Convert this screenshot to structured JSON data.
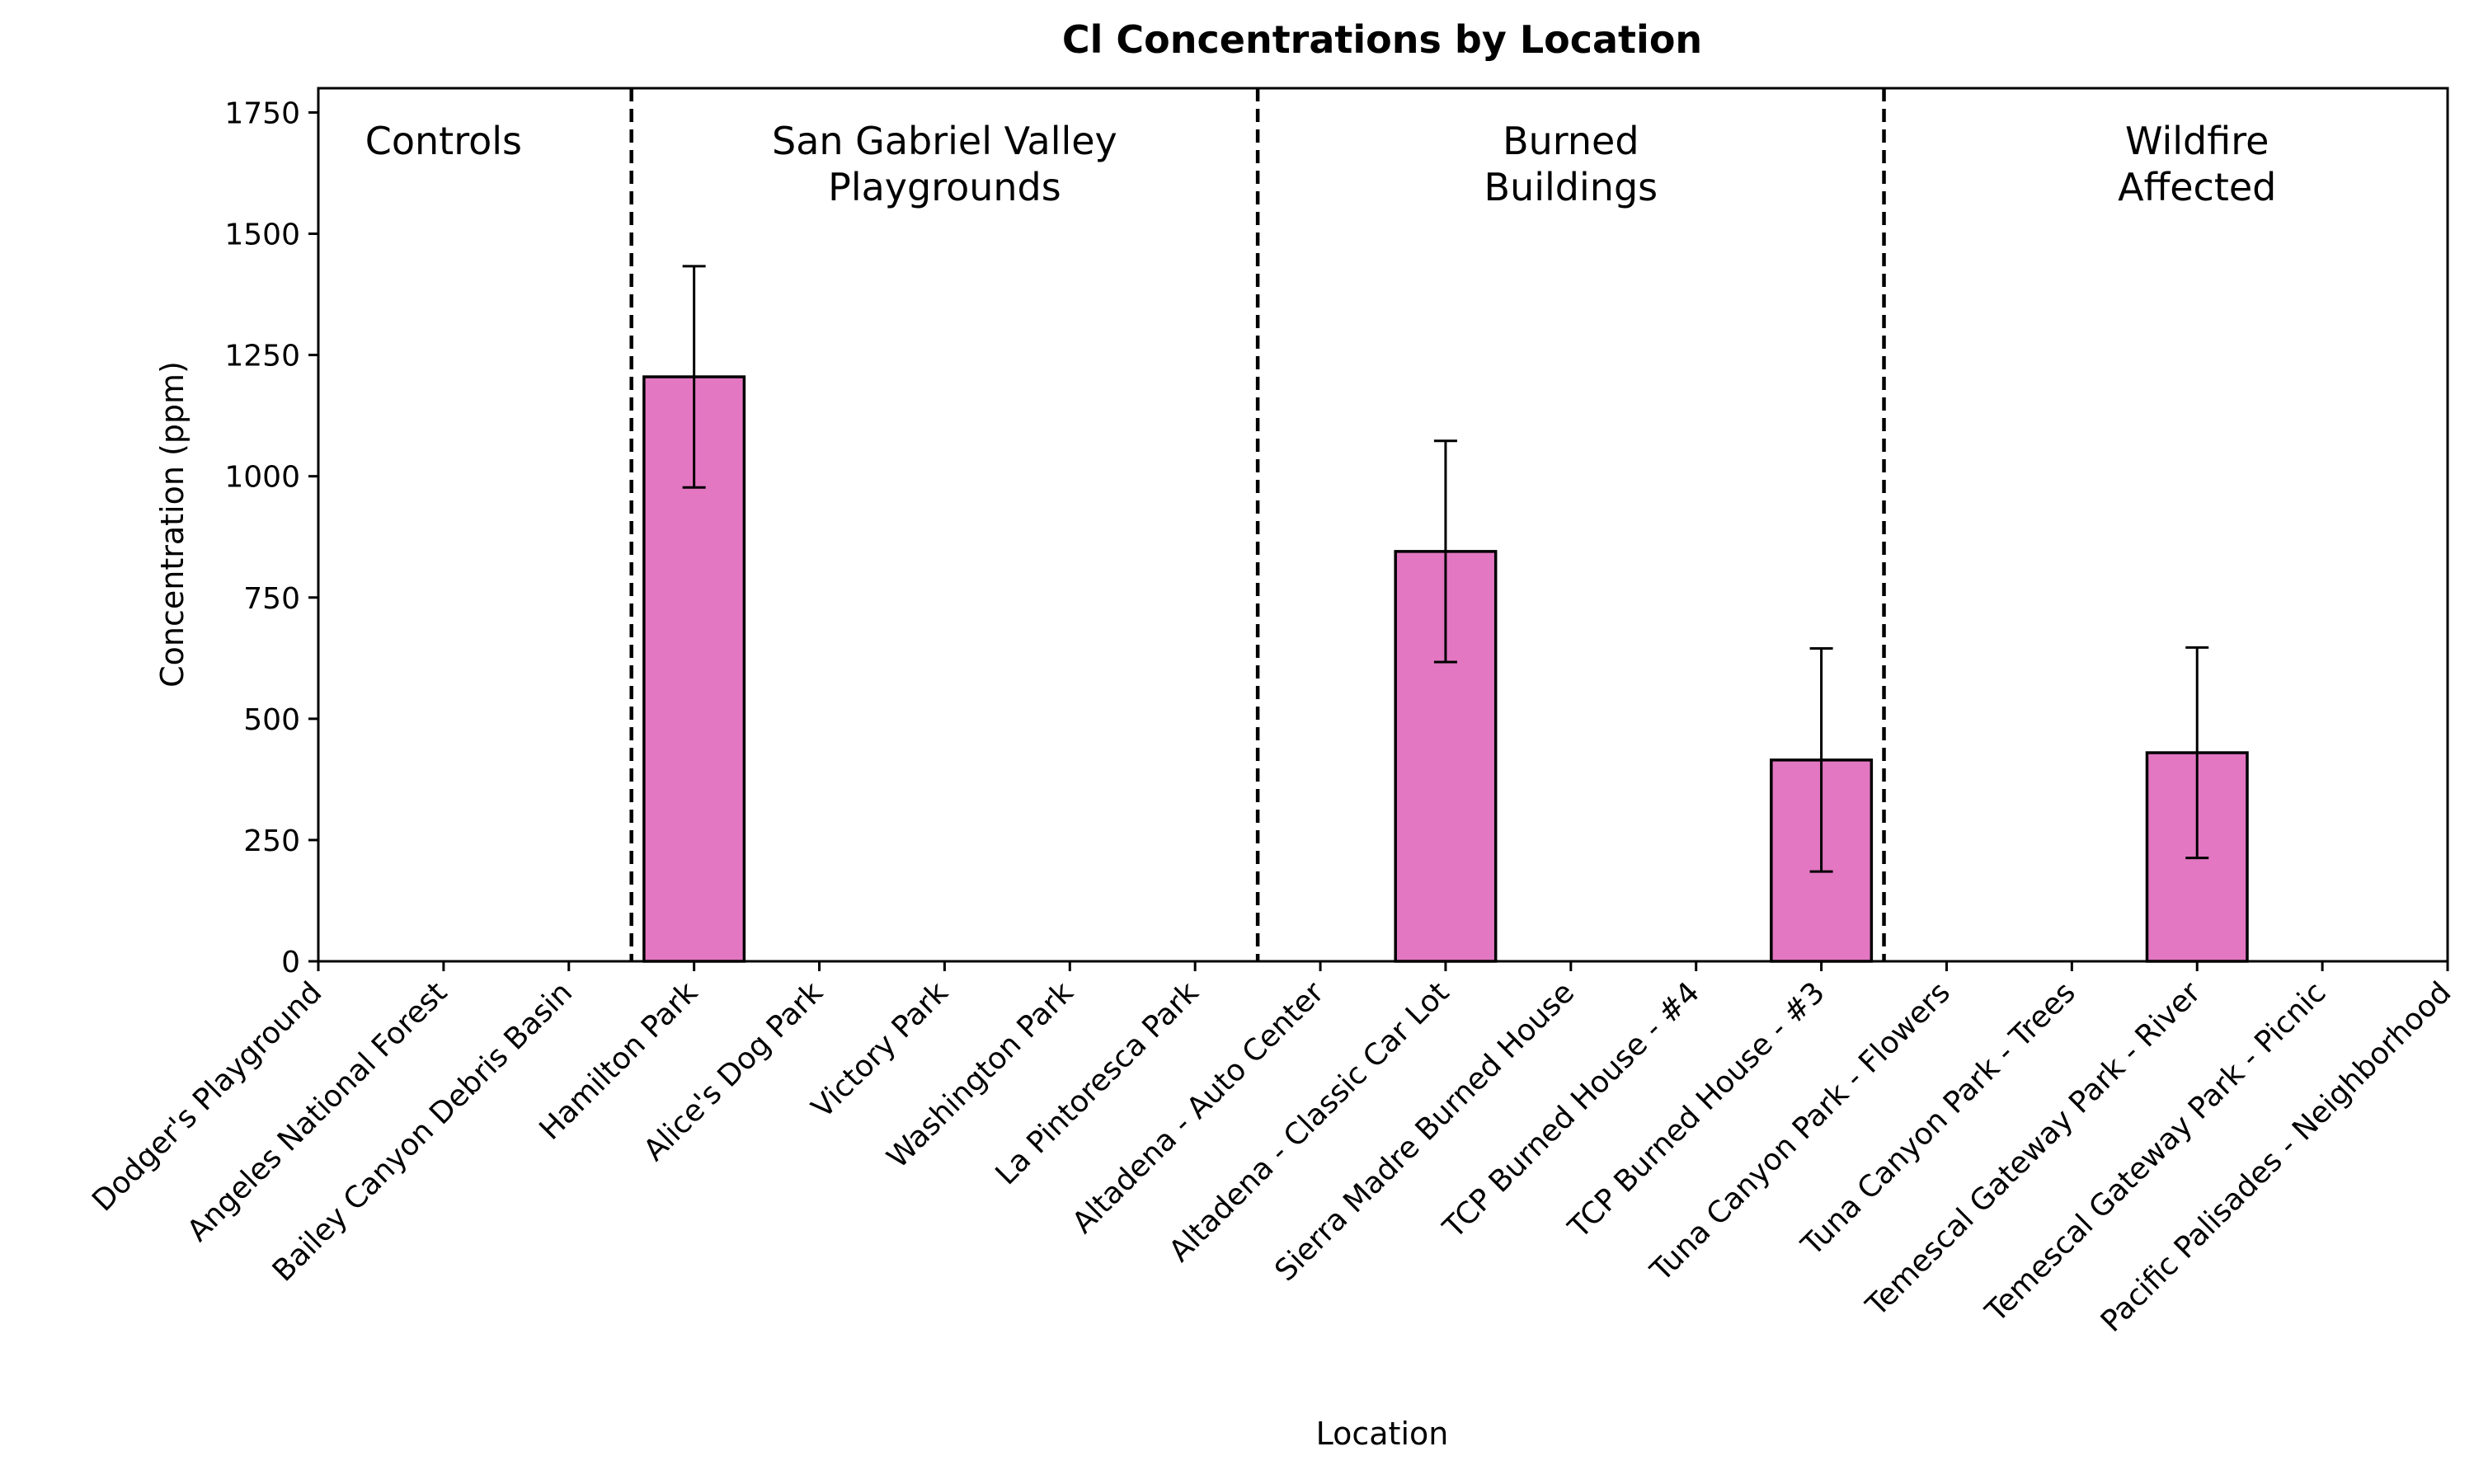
{
  "chart_data": {
    "type": "bar",
    "title": "Cl Concentrations by Location",
    "xlabel": "Location",
    "ylabel": "Concentration (ppm)",
    "ylim": [
      0,
      1800
    ],
    "yticks": [
      0,
      250,
      500,
      750,
      1000,
      1250,
      1500,
      1750
    ],
    "categories": [
      "Dodger's Playground",
      "Angeles National Forest",
      "Bailey Canyon Debris Basin",
      "Hamilton Park",
      "Alice's Dog Park",
      "Victory Park",
      "Washington Park",
      "La Pintoresca Park",
      "Altadena - Auto Center",
      "Altadena - Classic Car Lot",
      "Sierra Madre Burned House",
      "TCP Burned House - #4",
      "TCP Burned House - #3",
      "Tuna Canyon Park - Flowers",
      "Tuna Canyon Park - Trees",
      "Temescal Gateway Park - River",
      "Temescal Gateway Park - Picnic",
      "Pacific Palisades - Neighborhood"
    ],
    "values": [
      0,
      0,
      0,
      1205,
      0,
      0,
      0,
      0,
      0,
      845,
      0,
      0,
      415,
      0,
      0,
      430,
      0,
      0
    ],
    "errors": [
      0,
      0,
      0,
      228,
      0,
      0,
      0,
      0,
      0,
      228,
      0,
      0,
      230,
      0,
      0,
      217,
      0,
      0
    ],
    "bar_color": "#e377c2",
    "groups": [
      {
        "lines": [
          "Controls"
        ],
        "start": 0,
        "end": 2
      },
      {
        "lines": [
          "San Gabriel Valley",
          "Playgrounds"
        ],
        "start": 3,
        "end": 7
      },
      {
        "lines": [
          "Burned",
          "Buildings"
        ],
        "start": 8,
        "end": 12
      },
      {
        "lines": [
          "Wildfire",
          "Affected"
        ],
        "start": 13,
        "end": 17
      }
    ],
    "group_dividers_after": [
      2.5,
      7.5,
      12.5
    ],
    "grid": false
  }
}
